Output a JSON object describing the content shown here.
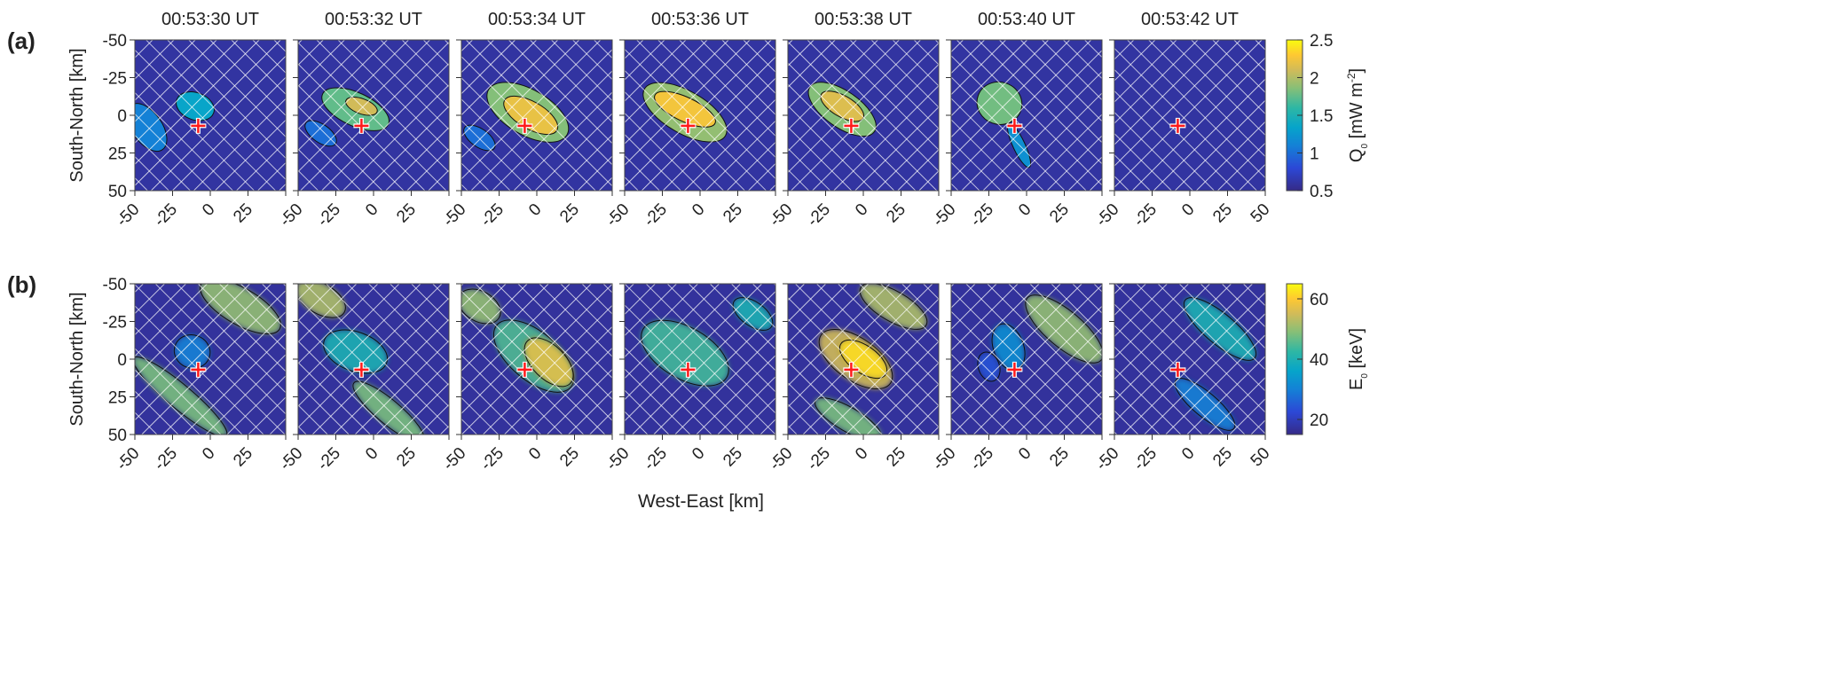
{
  "chart_data": {
    "type": "heatmap",
    "times": [
      "00:53:30 UT",
      "00:53:32 UT",
      "00:53:34 UT",
      "00:53:36 UT",
      "00:53:38 UT",
      "00:53:40 UT",
      "00:53:42 UT"
    ],
    "xlabel": "West-East [km]",
    "ylabel": "South-North [km]",
    "xlim": [
      -50,
      50
    ],
    "ylim": [
      -50,
      50
    ],
    "xticks": [
      "-50",
      "-25",
      "0",
      "25",
      "50"
    ],
    "yticks": [
      "-50",
      "-25",
      "0",
      "25",
      "50"
    ],
    "marker": {
      "x": -8,
      "y": 7,
      "color": "#ff1a1a"
    },
    "hatch_color": "#ffffff",
    "rows": [
      {
        "label": "(a)",
        "colorbar": {
          "label": "Q",
          "sub": "0",
          "unit": " [mW m",
          "sup": "-2",
          "close": "]",
          "ticks": [
            "0.5",
            "1",
            "1.5",
            "2",
            "2.5"
          ],
          "range": [
            0.5,
            2.5
          ]
        },
        "background_value": 0.6,
        "blobs": [
          [
            {
              "cx": -10,
              "cy": -6,
              "rx": 13,
              "ry": 9,
              "rot": 20,
              "v": 1.35
            },
            {
              "cx": -42,
              "cy": 8,
              "rx": 10,
              "ry": 18,
              "rot": -35,
              "v": 1.1
            }
          ],
          [
            {
              "cx": -12,
              "cy": -4,
              "rx": 24,
              "ry": 11,
              "rot": 25,
              "v": 1.75
            },
            {
              "cx": -8,
              "cy": -6,
              "rx": 11,
              "ry": 5,
              "rot": 20,
              "v": 2.1
            },
            {
              "cx": -35,
              "cy": 12,
              "rx": 12,
              "ry": 6,
              "rot": 35,
              "v": 1.0
            }
          ],
          [
            {
              "cx": -6,
              "cy": -2,
              "rx": 30,
              "ry": 15,
              "rot": 30,
              "v": 1.85
            },
            {
              "cx": -4,
              "cy": 0,
              "rx": 20,
              "ry": 9,
              "rot": 30,
              "v": 2.2
            },
            {
              "cx": -38,
              "cy": 15,
              "rx": 12,
              "ry": 6,
              "rot": 35,
              "v": 1.0
            }
          ],
          [
            {
              "cx": -10,
              "cy": -2,
              "rx": 31,
              "ry": 14,
              "rot": 30,
              "v": 1.9
            },
            {
              "cx": -10,
              "cy": -4,
              "rx": 22,
              "ry": 8,
              "rot": 25,
              "v": 2.25
            }
          ],
          [
            {
              "cx": -14,
              "cy": -4,
              "rx": 26,
              "ry": 12,
              "rot": 35,
              "v": 1.85
            },
            {
              "cx": -14,
              "cy": -6,
              "rx": 16,
              "ry": 7,
              "rot": 30,
              "v": 2.15
            }
          ],
          [
            {
              "cx": -18,
              "cy": -8,
              "rx": 15,
              "ry": 14,
              "rot": 20,
              "v": 1.8
            },
            {
              "cx": -5,
              "cy": 20,
              "rx": 4,
              "ry": 16,
              "rot": -25,
              "v": 1.2
            }
          ],
          []
        ]
      },
      {
        "label": "(b)",
        "colorbar": {
          "label": "E",
          "sub": "0",
          "unit": " [keV]",
          "sup": "",
          "close": "",
          "ticks": [
            "20",
            "40",
            "60"
          ],
          "range": [
            15,
            65
          ]
        },
        "background_value": 17,
        "blobs": [
          [
            {
              "cx": 20,
              "cy": -35,
              "rx": 30,
              "ry": 12,
              "rot": 30,
              "v": 50
            },
            {
              "cx": -20,
              "cy": 25,
              "rx": 40,
              "ry": 8,
              "rot": 40,
              "v": 48
            },
            {
              "cx": -12,
              "cy": -5,
              "rx": 12,
              "ry": 11,
              "rot": 20,
              "v": 30
            }
          ],
          [
            {
              "cx": -35,
              "cy": -40,
              "rx": 18,
              "ry": 10,
              "rot": 30,
              "v": 52
            },
            {
              "cx": 10,
              "cy": 35,
              "rx": 30,
              "ry": 8,
              "rot": 40,
              "v": 48
            },
            {
              "cx": -12,
              "cy": -5,
              "rx": 22,
              "ry": 13,
              "rot": 20,
              "v": 40
            }
          ],
          [
            {
              "cx": -38,
              "cy": -35,
              "rx": 15,
              "ry": 10,
              "rot": 30,
              "v": 50
            },
            {
              "cx": -2,
              "cy": -2,
              "rx": 32,
              "ry": 16,
              "rot": 40,
              "v": 45
            },
            {
              "cx": 8,
              "cy": 2,
              "rx": 20,
              "ry": 11,
              "rot": 45,
              "v": 57
            }
          ],
          [
            {
              "cx": -10,
              "cy": -4,
              "rx": 32,
              "ry": 17,
              "rot": 30,
              "v": 44
            },
            {
              "cx": 35,
              "cy": -30,
              "rx": 15,
              "ry": 8,
              "rot": 35,
              "v": 40
            }
          ],
          [
            {
              "cx": 20,
              "cy": -35,
              "rx": 25,
              "ry": 10,
              "rot": 30,
              "v": 52
            },
            {
              "cx": -5,
              "cy": 0,
              "rx": 28,
              "ry": 14,
              "rot": 35,
              "v": 55
            },
            {
              "cx": 0,
              "cy": 0,
              "rx": 18,
              "ry": 9,
              "rot": 35,
              "v": 62
            },
            {
              "cx": -10,
              "cy": 40,
              "rx": 25,
              "ry": 8,
              "rot": 30,
              "v": 48
            }
          ],
          [
            {
              "cx": 25,
              "cy": -20,
              "rx": 32,
              "ry": 12,
              "rot": 40,
              "v": 50
            },
            {
              "cx": -12,
              "cy": -8,
              "rx": 10,
              "ry": 16,
              "rot": -20,
              "v": 32
            },
            {
              "cx": -25,
              "cy": 5,
              "rx": 7,
              "ry": 10,
              "rot": -20,
              "v": 24
            }
          ],
          [
            {
              "cx": 20,
              "cy": -20,
              "rx": 30,
              "ry": 10,
              "rot": 40,
              "v": 40
            },
            {
              "cx": 10,
              "cy": 30,
              "rx": 25,
              "ry": 8,
              "rot": 40,
              "v": 30
            }
          ]
        ]
      }
    ]
  }
}
